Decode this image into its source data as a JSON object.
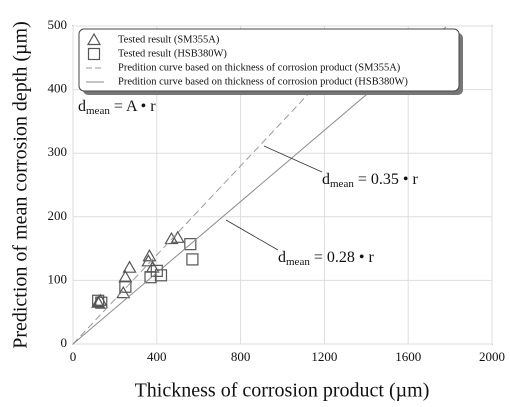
{
  "chart_data": {
    "type": "scatter",
    "x_label": "Thickness of corrosion product (µm)",
    "y_label": "Prediction of mean corrosion depth (µm)",
    "xlim": [
      0,
      2000
    ],
    "xticks": [
      0,
      400,
      800,
      1200,
      1600,
      2000
    ],
    "ylim": [
      0,
      500
    ],
    "yticks": [
      0,
      100,
      200,
      300,
      400,
      500
    ],
    "grid": true,
    "legend": "upper left",
    "series": [
      {
        "name": "Tested result (SM355A)",
        "type": "scatter",
        "marker": "triangle",
        "color": "#555555",
        "x": [
          120,
          130,
          240,
          250,
          270,
          360,
          365,
          380,
          470,
          500
        ],
        "values": [
          65,
          68,
          80,
          105,
          120,
          130,
          138,
          120,
          165,
          167
        ]
      },
      {
        "name": "Tested result (HSB380W)",
        "type": "scatter",
        "marker": "square",
        "color": "#555555",
        "x": [
          120,
          135,
          250,
          370,
          400,
          420,
          560,
          570
        ],
        "values": [
          68,
          65,
          90,
          105,
          115,
          108,
          157,
          133
        ]
      },
      {
        "name": "Predition curve based on thickness of corrosion product (SM355A)",
        "type": "line",
        "dash": true,
        "color": "#9a9a9a",
        "x": [
          0,
          1140
        ],
        "values": [
          0,
          399
        ]
      },
      {
        "name": "Predition curve based on thickness of corrosion product (HSB380W)",
        "type": "line",
        "dash": false,
        "color": "#8a8a8a",
        "x": [
          0,
          1780
        ],
        "values": [
          0,
          498.4
        ]
      }
    ],
    "annotations": [
      {
        "base": "d",
        "sub": "mean",
        "rest": " = A • r"
      },
      {
        "base": "d",
        "sub": "mean",
        "rest": " = 0.35 • r"
      },
      {
        "base": "d",
        "sub": "mean",
        "rest": " = 0.28 • r"
      }
    ]
  }
}
